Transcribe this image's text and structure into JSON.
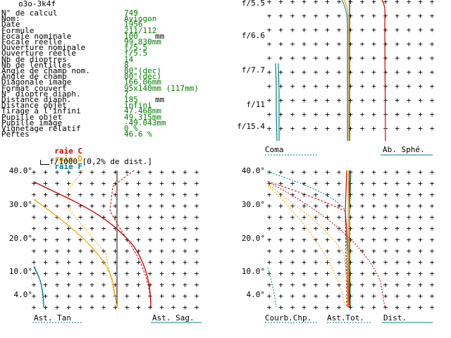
{
  "header": {
    "title": "o3o-3k4f"
  },
  "params": [
    {
      "label": "N° de calcul",
      "value": "749",
      "unit": ""
    },
    {
      "label": "Nom:",
      "value": "Aviogon",
      "unit": ""
    },
    {
      "label": "Date",
      "value": "1956",
      "unit": ""
    },
    {
      "label": "Formule",
      "value": "211/112",
      "unit": ""
    },
    {
      "label": "Focale nominale",
      "value": "100",
      "unit": "mm"
    },
    {
      "label": "Focale réelle",
      "value": "99.830mm",
      "unit": ""
    },
    {
      "label": "Ouverture nominale",
      "value": "f/5.5",
      "unit": ""
    },
    {
      "label": "Ouverture réelle",
      "value": "f/5.5",
      "unit": ""
    },
    {
      "label": "Nb de dioptres",
      "value": "14",
      "unit": ""
    },
    {
      "label": "Nb de lentilles",
      "value": "8",
      "unit": ""
    },
    {
      "label": "Angle de champ nom.",
      "value": "80°(dec)",
      "unit": ""
    },
    {
      "label": "Angle de champ",
      "value": "80°(dec)",
      "unit": ""
    },
    {
      "label": "Diagonale image",
      "value": "166.06mm",
      "unit": ""
    },
    {
      "label": "Format couvert",
      "value": "95x140mm (117mm)",
      "unit": ""
    },
    {
      "label": "N° dioptre diaph.",
      "value": "7",
      "unit": ""
    },
    {
      "label": "Distance diaph.",
      "value": "185",
      "unit": "mm"
    },
    {
      "label": "Distance objet",
      "value": "infini",
      "unit": ""
    },
    {
      "label": "Tirage à l'infini",
      "value": "47.468mm",
      "unit": ""
    },
    {
      "label": "Pupille objet",
      "value": "49.315mm",
      "unit": ""
    },
    {
      "label": "Pupille image",
      "value": "-49.043mm",
      "unit": ""
    },
    {
      "label": "Vignetage relatif",
      "value": "0 %",
      "unit": ""
    },
    {
      "label": "Pertes",
      "value": "46.6 %",
      "unit": ""
    }
  ],
  "legend": {
    "raie_c": "raie C",
    "raie_d": "raie D",
    "raie_f": "raie F",
    "note": "f/1000 [0,2% de dist.]",
    "color_c": "#cc0000",
    "color_d": "#f0a000",
    "color_f": "#008080"
  },
  "top_right": {
    "apertures": [
      "f/5.5",
      "f/6.6",
      "f/7.7",
      "f/11",
      "f/15.4"
    ],
    "label_left": "Coma",
    "label_right": "Ab. Sphé."
  },
  "bottom_left": {
    "fields": [
      "40.0°",
      "30.0°",
      "20.0°",
      "10.0°",
      "4.0°"
    ],
    "label_left": "Ast. Tan",
    "label_right": "Ast. Sag."
  },
  "bottom_right": {
    "fields": [
      "40.0°",
      "30.0°",
      "20.0°",
      "10.0°",
      "4.0°"
    ],
    "label_left": "Courb.Chp.",
    "label_mid": "Ast.Tot.",
    "label_right": "Dist."
  }
}
